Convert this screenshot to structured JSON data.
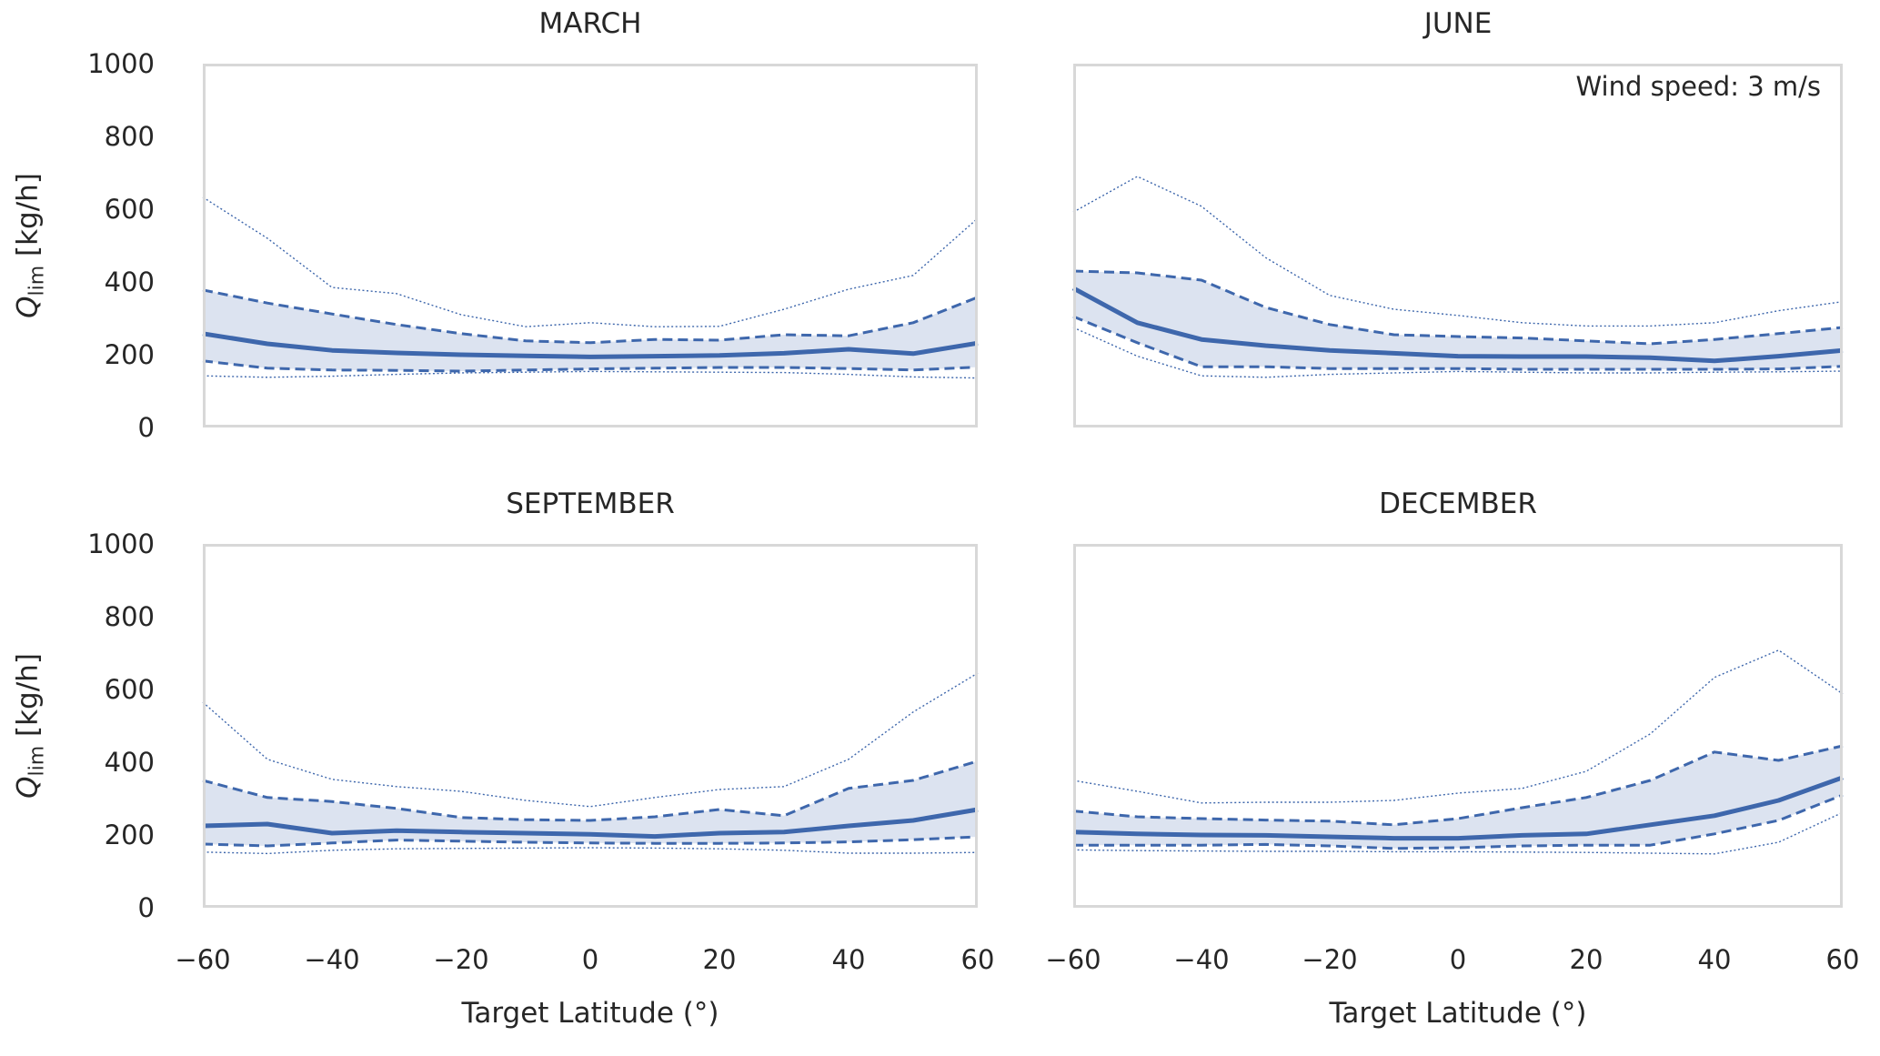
{
  "colors": {
    "line": "#3e67ac",
    "band_fill": "#dce3f0",
    "spine": "#d8d8d8",
    "text": "#262626"
  },
  "axes": {
    "x_label": "Target Latitude (°)",
    "y_label_symbol": "Q",
    "y_label_subscript": "lim",
    "y_label_rest": " [kg/h]",
    "x_tick_labels": [
      "−60",
      "−40",
      "−20",
      "0",
      "20",
      "40",
      "60"
    ],
    "x_tick_values": [
      -60,
      -40,
      -20,
      0,
      20,
      40,
      60
    ],
    "y_tick_labels": [
      "0",
      "200",
      "400",
      "600",
      "800",
      "1000"
    ],
    "y_tick_values": [
      0,
      200,
      400,
      600,
      800,
      1000
    ]
  },
  "annotation": {
    "text": "Wind speed: 3 m/s"
  },
  "chart_data": [
    {
      "type": "line",
      "title": "MARCH",
      "xlabel": "Target Latitude (°)",
      "ylabel": "Q_lim [kg/h]",
      "xlim": [
        -60,
        60
      ],
      "ylim": [
        0,
        1000
      ],
      "grid": false,
      "legend": "none",
      "x": [
        -60,
        -50,
        -40,
        -30,
        -20,
        -10,
        0,
        10,
        20,
        30,
        40,
        50,
        60
      ],
      "band_fill_between": [
        "upper-dashed",
        "lower-dashed"
      ],
      "series": [
        {
          "name": "median",
          "style": "solid-thick",
          "values": [
            258,
            230,
            212,
            205,
            200,
            197,
            194,
            196,
            198,
            204,
            215,
            203,
            232
          ]
        },
        {
          "name": "upper-dashed",
          "style": "dashed",
          "values": [
            378,
            342,
            312,
            283,
            258,
            238,
            233,
            242,
            240,
            255,
            252,
            288,
            358
          ]
        },
        {
          "name": "lower-dashed",
          "style": "dashed",
          "values": [
            183,
            163,
            158,
            157,
            155,
            158,
            161,
            163,
            165,
            165,
            162,
            158,
            166
          ]
        },
        {
          "name": "upper-dotted",
          "style": "dotted",
          "values": [
            633,
            520,
            385,
            368,
            310,
            277,
            288,
            277,
            278,
            325,
            380,
            418,
            575
          ]
        },
        {
          "name": "lower-dotted",
          "style": "dotted",
          "values": [
            142,
            138,
            141,
            146,
            150,
            152,
            154,
            153,
            152,
            151,
            146,
            139,
            136
          ]
        }
      ]
    },
    {
      "type": "line",
      "title": "JUNE",
      "xlabel": "Target Latitude (°)",
      "ylabel": "Q_lim [kg/h]",
      "xlim": [
        -60,
        60
      ],
      "ylim": [
        0,
        1000
      ],
      "grid": false,
      "legend": "none",
      "annotation": "Wind speed: 3 m/s",
      "x": [
        -60,
        -50,
        -40,
        -30,
        -20,
        -10,
        0,
        10,
        20,
        30,
        40,
        50,
        60
      ],
      "band_fill_between": [
        "upper-dashed",
        "lower-dashed"
      ],
      "series": [
        {
          "name": "median",
          "style": "solid-thick",
          "values": [
            383,
            288,
            242,
            225,
            212,
            204,
            196,
            195,
            195,
            192,
            183,
            196,
            212
          ]
        },
        {
          "name": "upper-dashed",
          "style": "dashed",
          "values": [
            430,
            425,
            405,
            330,
            283,
            255,
            250,
            246,
            238,
            230,
            242,
            258,
            275
          ]
        },
        {
          "name": "lower-dashed",
          "style": "dashed",
          "values": [
            305,
            233,
            167,
            167,
            162,
            162,
            162,
            160,
            160,
            160,
            160,
            161,
            168
          ]
        },
        {
          "name": "upper-dotted",
          "style": "dotted",
          "values": [
            592,
            690,
            608,
            467,
            363,
            325,
            308,
            288,
            279,
            279,
            288,
            321,
            346
          ]
        },
        {
          "name": "lower-dotted",
          "style": "dotted",
          "values": [
            275,
            196,
            142,
            138,
            146,
            150,
            154,
            152,
            150,
            150,
            152,
            153,
            155
          ]
        }
      ]
    },
    {
      "type": "line",
      "title": "SEPTEMBER",
      "xlabel": "Target Latitude (°)",
      "ylabel": "Q_lim [kg/h]",
      "xlim": [
        -60,
        60
      ],
      "ylim": [
        0,
        1000
      ],
      "grid": false,
      "legend": "none",
      "x": [
        -60,
        -50,
        -40,
        -30,
        -20,
        -10,
        0,
        10,
        20,
        30,
        40,
        50,
        60
      ],
      "band_fill_between": [
        "upper-dashed",
        "lower-dashed"
      ],
      "series": [
        {
          "name": "median",
          "style": "solid-thick",
          "values": [
            225,
            230,
            205,
            212,
            208,
            205,
            202,
            196,
            205,
            208,
            225,
            240,
            270
          ]
        },
        {
          "name": "upper-dashed",
          "style": "dashed",
          "values": [
            350,
            303,
            292,
            273,
            248,
            242,
            240,
            250,
            270,
            253,
            328,
            350,
            403
          ]
        },
        {
          "name": "lower-dashed",
          "style": "dashed",
          "values": [
            175,
            170,
            178,
            186,
            183,
            180,
            178,
            177,
            177,
            178,
            181,
            187,
            195
          ]
        },
        {
          "name": "upper-dotted",
          "style": "dotted",
          "values": [
            565,
            408,
            353,
            333,
            320,
            295,
            278,
            303,
            325,
            333,
            408,
            538,
            645
          ]
        },
        {
          "name": "lower-dotted",
          "style": "dotted",
          "values": [
            153,
            149,
            158,
            162,
            163,
            164,
            165,
            164,
            162,
            158,
            150,
            150,
            152
          ]
        }
      ]
    },
    {
      "type": "line",
      "title": "DECEMBER",
      "xlabel": "Target Latitude (°)",
      "ylabel": "Q_lim [kg/h]",
      "xlim": [
        -60,
        60
      ],
      "ylim": [
        0,
        1000
      ],
      "grid": false,
      "legend": "none",
      "x": [
        -60,
        -50,
        -40,
        -30,
        -20,
        -10,
        0,
        10,
        20,
        30,
        40,
        50,
        60
      ],
      "band_fill_between": [
        "upper-dashed",
        "lower-dashed"
      ],
      "series": [
        {
          "name": "median",
          "style": "solid-thick",
          "values": [
            208,
            203,
            200,
            199,
            195,
            191,
            191,
            199,
            203,
            228,
            253,
            295,
            358
          ]
        },
        {
          "name": "upper-dashed",
          "style": "dashed",
          "values": [
            266,
            250,
            245,
            241,
            238,
            228,
            245,
            275,
            303,
            350,
            428,
            405,
            445
          ]
        },
        {
          "name": "lower-dashed",
          "style": "dashed",
          "values": [
            172,
            172,
            172,
            174,
            170,
            163,
            165,
            170,
            172,
            172,
            203,
            240,
            310
          ]
        },
        {
          "name": "upper-dotted",
          "style": "dotted",
          "values": [
            350,
            320,
            288,
            290,
            290,
            295,
            315,
            328,
            375,
            478,
            633,
            708,
            588
          ]
        },
        {
          "name": "lower-dotted",
          "style": "dotted",
          "values": [
            159,
            157,
            156,
            155,
            155,
            154,
            154,
            153,
            152,
            150,
            148,
            180,
            262
          ]
        }
      ]
    }
  ]
}
